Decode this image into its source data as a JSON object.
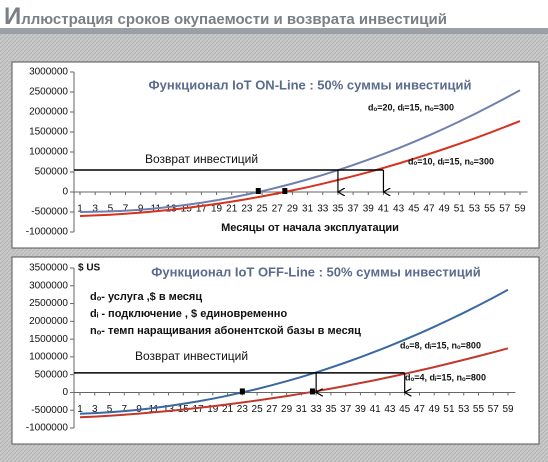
{
  "header": {
    "title": "Иллюстрация сроков окупаемости и возврата инвестиций"
  },
  "chart_data": [
    {
      "type": "line",
      "title": "Функционал IoT ON-Line : 50% суммы инвестиций",
      "x_label": "Месяцы от начала эксплуатации",
      "xlim": [
        0,
        60
      ],
      "xticks": [
        1,
        3,
        5,
        7,
        9,
        11,
        13,
        15,
        17,
        19,
        21,
        23,
        25,
        27,
        29,
        31,
        33,
        35,
        37,
        39,
        41,
        43,
        45,
        47,
        49,
        51,
        53,
        55,
        57,
        59
      ],
      "x": [
        1,
        3,
        5,
        7,
        9,
        11,
        13,
        15,
        17,
        19,
        21,
        23,
        25,
        27,
        29,
        31,
        33,
        35,
        37,
        39,
        41,
        43,
        45,
        47,
        49,
        51,
        53,
        55,
        57,
        59
      ],
      "ylim": [
        -1000000,
        3000000
      ],
      "yticks": [
        -1000000,
        -500000,
        0,
        500000,
        1000000,
        1500000,
        2000000,
        2500000,
        3000000
      ],
      "series": [
        {
          "name": "dₒ=20, dᵢ=15, nₒ=300",
          "color": "#6f80ad",
          "values": [
            -500000,
            -496000,
            -486000,
            -467000,
            -442000,
            -410000,
            -370000,
            -323000,
            -268000,
            -207000,
            -138000,
            -62000,
            21000,
            112000,
            210000,
            315000,
            427000,
            546000,
            673000,
            807000,
            948000,
            1096000,
            1252000,
            1415000,
            1585000,
            1763000,
            1947000,
            2139000,
            2338000,
            2544000
          ]
        },
        {
          "name": "dₒ=10, dᵢ=15, nₒ=300",
          "color": "#d5321f",
          "values": [
            -600000,
            -586000,
            -567000,
            -543000,
            -514000,
            -480000,
            -442000,
            -399000,
            -351000,
            -298000,
            -240000,
            -177000,
            -110000,
            -38000,
            39000,
            121000,
            208000,
            299000,
            395000,
            496000,
            602000,
            713000,
            829000,
            949000,
            1074000,
            1205000,
            1339000,
            1479000,
            1624000,
            1773000
          ]
        }
      ],
      "reference_line": {
        "y": 550000,
        "label": "Возврат инвестиций",
        "arrows_x": [
          35,
          41
        ],
        "markers_x": [
          24.5,
          28
        ]
      }
    },
    {
      "type": "line",
      "title": "Функционал IoT OFF-Line : 50% суммы инвестиций",
      "y_label": "$ US",
      "notes": [
        "dₒ- услуга ,$ в месяц",
        "dᵢ - подключение , $ единовременно",
        "nₒ- темп наращивания абонентской базы в месяц"
      ],
      "xlim": [
        0,
        60
      ],
      "xticks": [
        1,
        3,
        5,
        7,
        9,
        11,
        13,
        15,
        17,
        19,
        21,
        23,
        25,
        27,
        29,
        31,
        33,
        35,
        37,
        39,
        41,
        43,
        45,
        47,
        49,
        51,
        53,
        55,
        57,
        59
      ],
      "x": [
        1,
        3,
        5,
        7,
        9,
        11,
        13,
        15,
        17,
        19,
        21,
        23,
        25,
        27,
        29,
        31,
        33,
        35,
        37,
        39,
        41,
        43,
        45,
        47,
        49,
        51,
        53,
        55,
        57,
        59
      ],
      "ylim": [
        -1000000,
        3500000
      ],
      "yticks": [
        -1000000,
        -500000,
        0,
        500000,
        1000000,
        1500000,
        2000000,
        2500000,
        3000000,
        3500000
      ],
      "series": [
        {
          "name": "dₒ=8, dᵢ=15, nₒ=800",
          "color": "#3a68a0",
          "values": [
            -600000,
            -582000,
            -557000,
            -524000,
            -484000,
            -437000,
            -382000,
            -320000,
            -251000,
            -175000,
            -91000,
            0,
            98000,
            204000,
            317000,
            437000,
            565000,
            699000,
            841000,
            991000,
            1148000,
            1312000,
            1483000,
            1661000,
            1847000,
            2040000,
            2241000,
            2449000,
            2664000,
            2886000
          ]
        },
        {
          "name": "dₒ=4, dᵢ=15, nₒ=800",
          "color": "#c0392b",
          "values": [
            -700000,
            -678000,
            -653000,
            -625000,
            -594000,
            -559000,
            -521000,
            -480000,
            -436000,
            -388000,
            -337000,
            -283000,
            -226000,
            -166000,
            -102000,
            -35000,
            35000,
            109000,
            185000,
            265000,
            348000,
            435000,
            524000,
            617000,
            713000,
            813000,
            915000,
            1021000,
            1130000,
            1242000
          ]
        }
      ],
      "reference_line": {
        "y": 550000,
        "label": "Возврат инвестиций",
        "arrows_x": [
          33,
          45
        ],
        "markers_x": [
          23,
          32.5
        ]
      }
    }
  ]
}
